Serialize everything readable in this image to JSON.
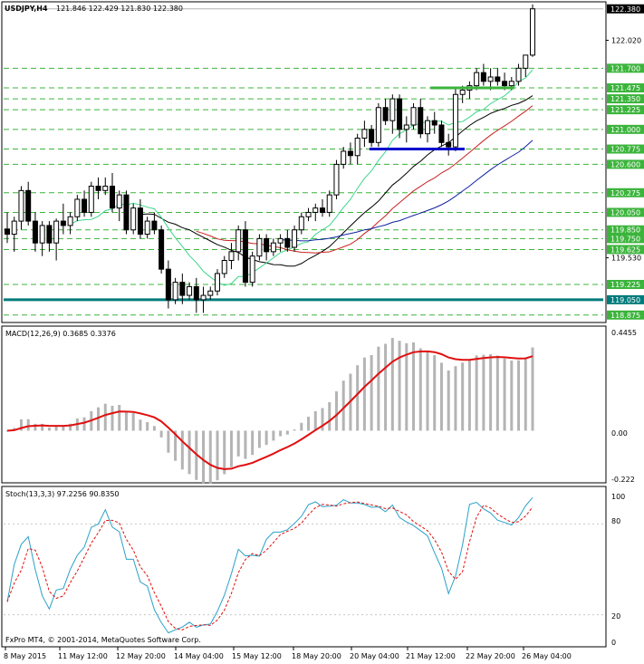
{
  "header": {
    "symbol": "USDJPY,H4",
    "ohlc": "121.846 122.429 121.830 122.380"
  },
  "price_scale": {
    "current_price": "122.380",
    "ticks": [
      "122.020",
      "119.530"
    ],
    "level_labels": [
      "121.700",
      "121.475",
      "121.350",
      "121.225",
      "121.000",
      "120.775",
      "120.600",
      "120.275",
      "120.050",
      "119.850",
      "119.750",
      "119.625",
      "119.225",
      "119.050",
      "118.875"
    ]
  },
  "macd_panel": {
    "title": "MACD(12,26,9) 0.3685 0.3376",
    "ticks": [
      "0.4455",
      "0.00",
      "-0.222"
    ]
  },
  "stoch_panel": {
    "title": "Stoch(13,3,3) 97.2256 90.8350",
    "ticks": [
      "100",
      "80",
      "20",
      "0"
    ]
  },
  "footer": {
    "copyright": "FxPro MT4, © 2001-2014, MetaQuotes Software Corp."
  },
  "time_axis": {
    "labels": [
      "8 May 2015",
      "11 May 12:00",
      "12 May 20:00",
      "14 May 04:00",
      "15 May 12:00",
      "18 May 20:00",
      "20 May 04:00",
      "21 May 12:00",
      "22 May 20:00",
      "26 May 04:00"
    ]
  },
  "colors": {
    "bull_candle": "#ffffff",
    "bear_candle": "#000000",
    "support_green": "#3cb43c",
    "support_blue": "#0000cc",
    "key_level": "#007b7b",
    "macd_signal": "#e01010",
    "macd_hist": "#b4b4b4",
    "stoch_main": "#2aa0c8",
    "stoch_signal": "#e01010",
    "ma_black": "#000000",
    "ma_light_green": "#3cd68a",
    "ma_red": "#c82020",
    "ma_navy": "#1020a0"
  },
  "chart_data": [
    {
      "type": "candlestick",
      "title": "USDJPY,H4",
      "candles": [
        [
          119.86,
          120.05,
          119.7,
          119.8
        ],
        [
          119.8,
          120.0,
          119.6,
          119.95
        ],
        [
          119.95,
          120.35,
          119.85,
          120.3
        ],
        [
          120.3,
          120.4,
          119.9,
          119.95
        ],
        [
          119.95,
          120.05,
          119.6,
          119.7
        ],
        [
          119.7,
          119.95,
          119.55,
          119.9
        ],
        [
          119.9,
          119.95,
          119.6,
          119.7
        ],
        [
          119.7,
          119.98,
          119.5,
          119.95
        ],
        [
          119.95,
          120.15,
          119.8,
          119.9
        ],
        [
          119.9,
          120.05,
          119.8,
          120.0
        ],
        [
          120.0,
          120.25,
          119.95,
          120.2
        ],
        [
          120.2,
          120.3,
          120.0,
          120.05
        ],
        [
          120.05,
          120.4,
          120.0,
          120.35
        ],
        [
          120.35,
          120.45,
          120.2,
          120.3
        ],
        [
          120.3,
          120.45,
          120.25,
          120.35
        ],
        [
          120.35,
          120.5,
          120.05,
          120.1
        ],
        [
          120.1,
          120.3,
          119.95,
          120.25
        ],
        [
          120.25,
          120.3,
          119.8,
          119.85
        ],
        [
          119.85,
          120.15,
          119.8,
          120.1
        ],
        [
          120.1,
          120.2,
          119.75,
          119.8
        ],
        [
          119.8,
          120.0,
          119.75,
          119.95
        ],
        [
          119.95,
          120.05,
          119.8,
          119.85
        ],
        [
          119.85,
          119.9,
          119.35,
          119.4
        ],
        [
          119.4,
          119.5,
          118.95,
          119.05
        ],
        [
          119.05,
          119.3,
          119.0,
          119.25
        ],
        [
          119.25,
          119.35,
          119.0,
          119.1
        ],
        [
          119.1,
          119.25,
          119.05,
          119.2
        ],
        [
          119.2,
          119.3,
          118.9,
          119.05
        ],
        [
          119.05,
          119.2,
          118.9,
          119.1
        ],
        [
          119.1,
          119.2,
          119.05,
          119.15
        ],
        [
          119.15,
          119.4,
          119.1,
          119.35
        ],
        [
          119.35,
          119.55,
          119.3,
          119.5
        ],
        [
          119.5,
          119.7,
          119.4,
          119.6
        ],
        [
          119.6,
          119.9,
          119.5,
          119.85
        ],
        [
          119.85,
          119.95,
          119.2,
          119.25
        ],
        [
          119.25,
          119.6,
          119.2,
          119.55
        ],
        [
          119.55,
          119.8,
          119.5,
          119.75
        ],
        [
          119.75,
          119.8,
          119.5,
          119.6
        ],
        [
          119.6,
          119.75,
          119.55,
          119.7
        ],
        [
          119.7,
          119.8,
          119.6,
          119.75
        ],
        [
          119.75,
          119.85,
          119.6,
          119.65
        ],
        [
          119.65,
          119.9,
          119.6,
          119.85
        ],
        [
          119.85,
          120.05,
          119.8,
          120.0
        ],
        [
          120.0,
          120.1,
          119.95,
          120.05
        ],
        [
          120.05,
          120.15,
          119.95,
          120.1
        ],
        [
          120.1,
          120.2,
          120.0,
          120.05
        ],
        [
          120.05,
          120.3,
          120.0,
          120.25
        ],
        [
          120.25,
          120.65,
          120.2,
          120.6
        ],
        [
          120.6,
          120.8,
          120.55,
          120.75
        ],
        [
          120.75,
          120.85,
          120.6,
          120.7
        ],
        [
          120.7,
          120.95,
          120.6,
          120.9
        ],
        [
          120.9,
          121.1,
          120.8,
          121.0
        ],
        [
          121.0,
          121.05,
          120.8,
          120.85
        ],
        [
          120.85,
          121.3,
          120.8,
          121.25
        ],
        [
          121.25,
          121.35,
          121.05,
          121.1
        ],
        [
          121.1,
          121.4,
          120.95,
          121.35
        ],
        [
          121.35,
          121.4,
          120.9,
          121.0
        ],
        [
          121.0,
          121.15,
          120.85,
          121.05
        ],
        [
          121.05,
          121.3,
          121.0,
          121.25
        ],
        [
          121.25,
          121.35,
          120.9,
          120.95
        ],
        [
          120.95,
          121.15,
          120.85,
          121.1
        ],
        [
          121.1,
          121.2,
          120.95,
          121.05
        ],
        [
          121.05,
          121.1,
          120.8,
          120.85
        ],
        [
          120.85,
          120.95,
          120.7,
          120.8
        ],
        [
          120.8,
          121.47,
          120.75,
          121.4
        ],
        [
          121.4,
          121.5,
          121.3,
          121.45
        ],
        [
          121.45,
          121.55,
          121.35,
          121.5
        ],
        [
          121.5,
          121.7,
          121.45,
          121.65
        ],
        [
          121.65,
          121.75,
          121.5,
          121.55
        ],
        [
          121.55,
          121.7,
          121.45,
          121.6
        ],
        [
          121.6,
          121.7,
          121.5,
          121.55
        ],
        [
          121.55,
          121.65,
          121.45,
          121.5
        ],
        [
          121.5,
          121.6,
          121.45,
          121.55
        ],
        [
          121.55,
          121.75,
          121.5,
          121.7
        ],
        [
          121.7,
          121.85,
          121.6,
          121.85
        ],
        [
          121.85,
          122.43,
          121.83,
          122.38
        ]
      ],
      "horizontal_levels": [
        121.7,
        121.475,
        121.35,
        121.225,
        121.0,
        120.775,
        120.6,
        120.275,
        120.05,
        119.85,
        119.75,
        119.625,
        119.225,
        119.05,
        118.875
      ],
      "ylim": [
        118.8,
        122.45
      ]
    },
    {
      "type": "bar",
      "title": "MACD(12,26,9) 0.3685 0.3376",
      "ylim": [
        -0.222,
        0.4455
      ]
    },
    {
      "type": "line",
      "title": "Stoch(13,3,3) 97.2256 90.8350",
      "ylim": [
        0,
        100
      ]
    }
  ]
}
